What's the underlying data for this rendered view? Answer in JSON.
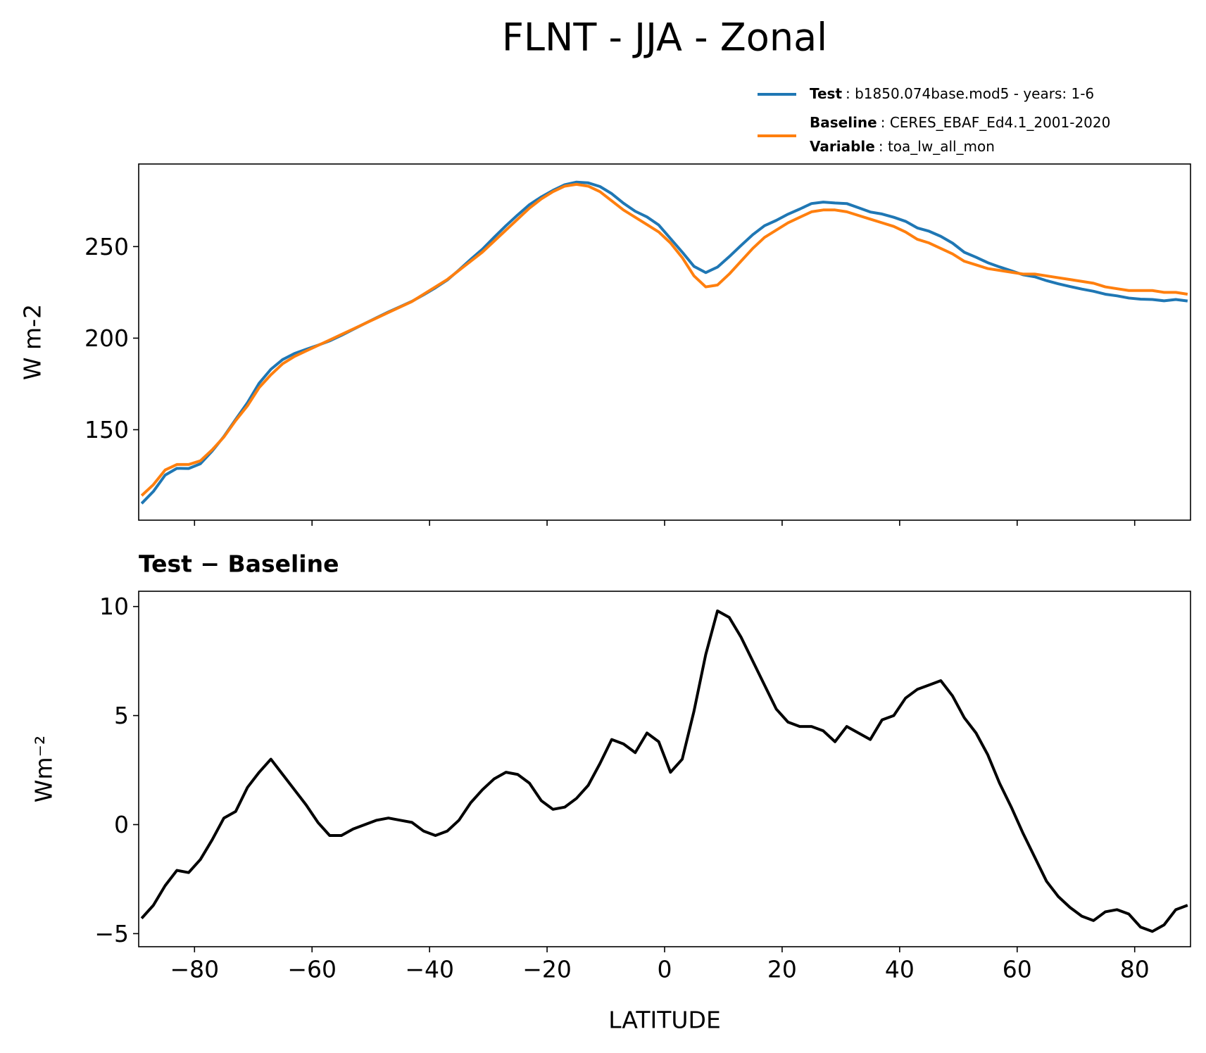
{
  "title": "FLNT - JJA - Zonal",
  "chart_data": [
    {
      "type": "line",
      "x": [
        -89,
        -87,
        -85,
        -83,
        -81,
        -79,
        -77,
        -75,
        -73,
        -71,
        -69,
        -67,
        -65,
        -63,
        -61,
        -59,
        -57,
        -55,
        -53,
        -51,
        -49,
        -47,
        -45,
        -43,
        -41,
        -39,
        -37,
        -35,
        -33,
        -31,
        -29,
        -27,
        -25,
        -23,
        -21,
        -19,
        -17,
        -15,
        -13,
        -11,
        -9,
        -7,
        -5,
        -3,
        -1,
        1,
        3,
        5,
        7,
        9,
        11,
        13,
        15,
        17,
        19,
        21,
        23,
        25,
        27,
        29,
        31,
        33,
        35,
        37,
        39,
        41,
        43,
        45,
        47,
        49,
        51,
        53,
        55,
        57,
        59,
        61,
        63,
        65,
        67,
        69,
        71,
        73,
        75,
        77,
        79,
        81,
        83,
        85,
        87,
        89
      ],
      "xlim": [
        -89.5,
        89.5
      ],
      "ylabel": "W m-2",
      "ylim": [
        100.6,
        295.1
      ],
      "yticks": [
        150,
        200,
        250
      ],
      "series": [
        {
          "name": "Test",
          "label": ": b1850.074base.mod5 - years: 1-6",
          "color": "#1f77b4",
          "values": [
            109.7,
            116.3,
            125.2,
            128.9,
            128.8,
            131.4,
            138.3,
            146.3,
            155.6,
            164.7,
            175.4,
            183,
            188.3,
            191.6,
            193.9,
            196.1,
            198.5,
            201.5,
            204.8,
            208,
            211.2,
            214.3,
            217.2,
            220.1,
            223.7,
            227.5,
            231.7,
            237.2,
            243,
            248.6,
            255.1,
            261.4,
            267.3,
            272.9,
            277.1,
            280.7,
            283.8,
            285.2,
            284.8,
            282.8,
            278.9,
            273.7,
            269.3,
            266.2,
            261.8,
            254.4,
            247,
            239.2,
            235.8,
            238.8,
            244.5,
            250.6,
            256.5,
            261.4,
            264.3,
            267.7,
            270.5,
            273.5,
            274.3,
            273.8,
            273.5,
            271.2,
            268.9,
            267.8,
            266,
            263.8,
            260.2,
            258.4,
            255.6,
            251.9,
            246.9,
            244.2,
            241.2,
            238.9,
            236.8,
            234.6,
            233.5,
            231.4,
            229.7,
            228.2,
            226.8,
            225.6,
            224,
            223.1,
            221.9,
            221.3,
            221.1,
            220.4,
            221.1,
            220.3
          ]
        },
        {
          "name": "Baseline",
          "label": ": CERES_EBAF_Ed4.1_2001-2020",
          "extra_name": "Variable",
          "extra_label": ": toa_lw_all_mon",
          "color": "#ff7f0e",
          "values": [
            114,
            120,
            128,
            131,
            131,
            133,
            139,
            146,
            155,
            163,
            173,
            180,
            186,
            190,
            193,
            196,
            199,
            202,
            205,
            208,
            211,
            214,
            217,
            220,
            224,
            228,
            232,
            237,
            242,
            247,
            253,
            259,
            265,
            271,
            276,
            280,
            283,
            284,
            283,
            280,
            275,
            270,
            266,
            262,
            258,
            252,
            244,
            234,
            228,
            229,
            235,
            242,
            249,
            255,
            259,
            263,
            266,
            269,
            270,
            270,
            269,
            267,
            265,
            263,
            261,
            258,
            254,
            252,
            249,
            246,
            242,
            240,
            238,
            237,
            236,
            235,
            235,
            234,
            233,
            232,
            231,
            230,
            228,
            227,
            226,
            226,
            226,
            225,
            225,
            224
          ]
        }
      ]
    },
    {
      "type": "line",
      "title": "Test − Baseline",
      "x": [
        -89,
        -87,
        -85,
        -83,
        -81,
        -79,
        -77,
        -75,
        -73,
        -71,
        -69,
        -67,
        -65,
        -63,
        -61,
        -59,
        -57,
        -55,
        -53,
        -51,
        -49,
        -47,
        -45,
        -43,
        -41,
        -39,
        -37,
        -35,
        -33,
        -31,
        -29,
        -27,
        -25,
        -23,
        -21,
        -19,
        -17,
        -15,
        -13,
        -11,
        -9,
        -7,
        -5,
        -3,
        -1,
        1,
        3,
        5,
        7,
        9,
        11,
        13,
        15,
        17,
        19,
        21,
        23,
        25,
        27,
        29,
        31,
        33,
        35,
        37,
        39,
        41,
        43,
        45,
        47,
        49,
        51,
        53,
        55,
        57,
        59,
        61,
        63,
        65,
        67,
        69,
        71,
        73,
        75,
        77,
        79,
        81,
        83,
        85,
        87,
        89
      ],
      "xlim": [
        -89.5,
        89.5
      ],
      "xlabel": "LATITUDE",
      "xticks": [
        {
          "value": -80,
          "label": "−80"
        },
        {
          "value": -60,
          "label": "−60"
        },
        {
          "value": -40,
          "label": "−40"
        },
        {
          "value": -20,
          "label": "−20"
        },
        0,
        20,
        40,
        60,
        80
      ],
      "ylabel": "Wm⁻²",
      "ylim": [
        -5.6,
        10.7
      ],
      "yticks": [
        {
          "value": -5,
          "label": "−5"
        },
        0,
        5,
        10
      ],
      "series": [
        {
          "color": "#000000",
          "values": [
            -4.3,
            -3.7,
            -2.8,
            -2.1,
            -2.2,
            -1.6,
            -0.7,
            0.3,
            0.6,
            1.7,
            2.4,
            3.0,
            2.3,
            1.6,
            0.9,
            0.1,
            -0.5,
            -0.5,
            -0.2,
            0.0,
            0.2,
            0.3,
            0.2,
            0.1,
            -0.3,
            -0.5,
            -0.3,
            0.2,
            1.0,
            1.6,
            2.1,
            2.4,
            2.3,
            1.9,
            1.1,
            0.7,
            0.8,
            1.2,
            1.8,
            2.8,
            3.9,
            3.7,
            3.3,
            4.2,
            3.8,
            2.4,
            3.0,
            5.2,
            7.8,
            9.8,
            9.5,
            8.6,
            7.5,
            6.4,
            5.3,
            4.7,
            4.5,
            4.5,
            4.3,
            3.8,
            4.5,
            4.2,
            3.9,
            4.8,
            5.0,
            5.8,
            6.2,
            6.4,
            6.6,
            5.9,
            4.9,
            4.2,
            3.2,
            1.9,
            0.8,
            -0.4,
            -1.5,
            -2.6,
            -3.3,
            -3.8,
            -4.2,
            -4.4,
            -4.0,
            -3.9,
            -4.1,
            -4.7,
            -4.9,
            -4.6,
            -3.9,
            -3.7
          ]
        }
      ]
    }
  ]
}
